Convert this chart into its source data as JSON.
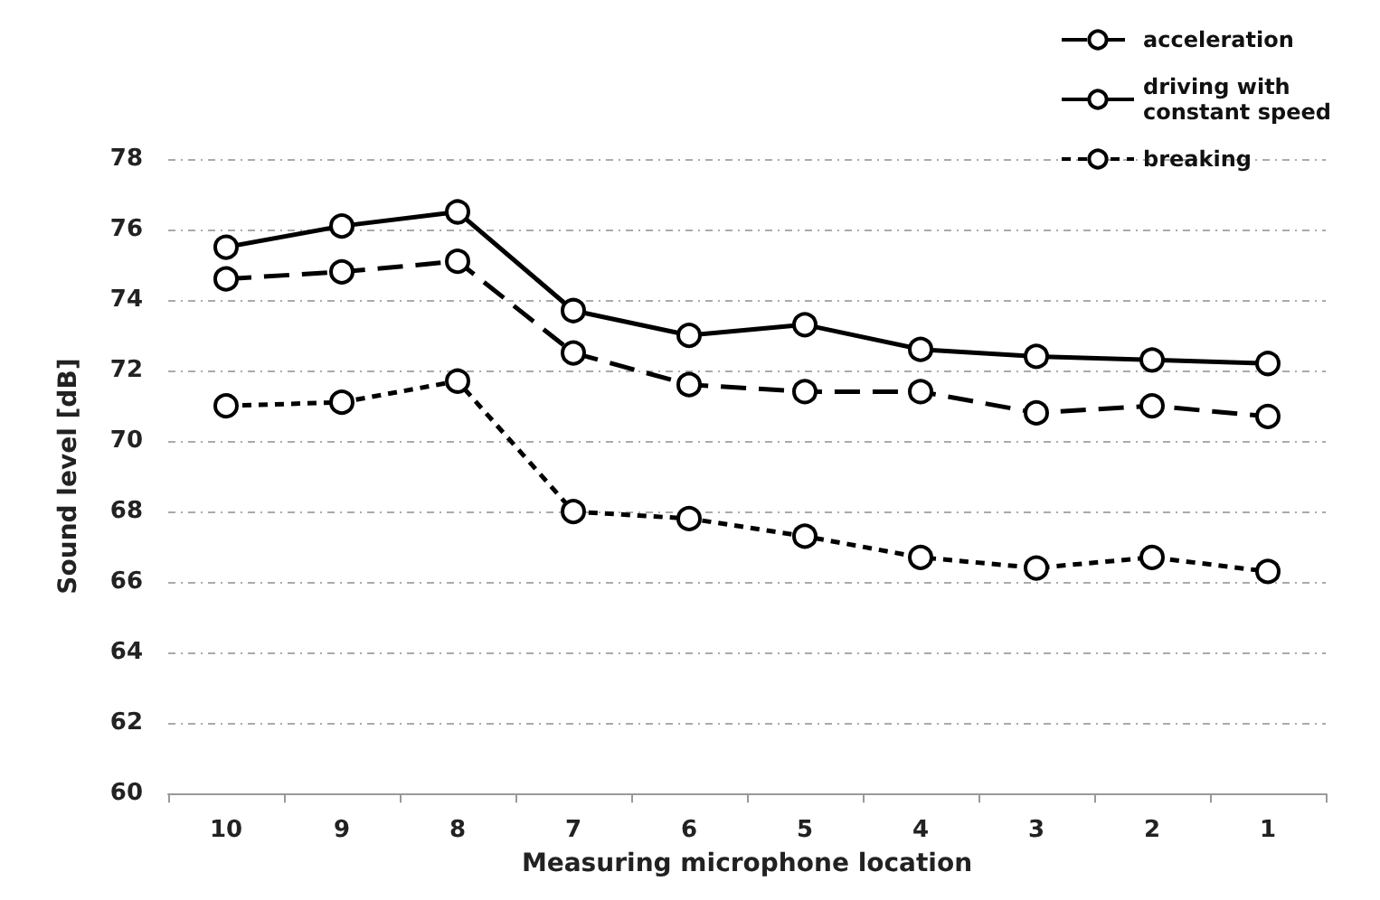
{
  "chart_data": {
    "type": "line",
    "xlabel": "Measuring microphone location",
    "ylabel": "Sound level [dB]",
    "categories": [
      "10",
      "9",
      "8",
      "7",
      "6",
      "5",
      "4",
      "3",
      "2",
      "1"
    ],
    "series": [
      {
        "name": "acceleration",
        "color": "#000000",
        "line_style": "dashed",
        "values": [
          74.6,
          74.8,
          75.1,
          72.5,
          71.6,
          71.4,
          71.4,
          70.8,
          71.0,
          70.7
        ]
      },
      {
        "name": "driving with constant speed",
        "color": "#000000",
        "line_style": "solid",
        "values": [
          75.5,
          76.1,
          76.5,
          73.7,
          73.0,
          73.3,
          72.6,
          72.4,
          72.3,
          72.2
        ]
      },
      {
        "name": "breaking",
        "color": "#000000",
        "line_style": "dotted",
        "values": [
          71.0,
          71.1,
          71.7,
          68.0,
          67.8,
          67.3,
          66.7,
          66.4,
          66.7,
          66.3
        ]
      }
    ],
    "ylim": [
      60,
      78
    ],
    "yticks": [
      60,
      62,
      64,
      66,
      68,
      70,
      72,
      74,
      76,
      78
    ],
    "grid": "y",
    "legend": "top right",
    "marker": "circle"
  }
}
